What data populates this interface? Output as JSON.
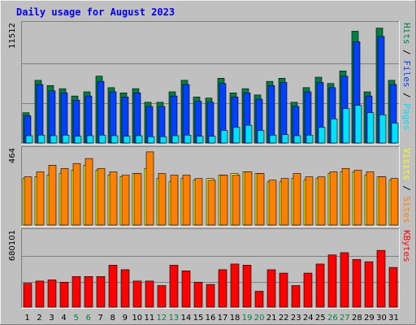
{
  "chart_data": {
    "type": "bar",
    "title": "Daily usage for August 2023",
    "colors": {
      "background": "#c0c0c0",
      "frame_light": "#f0f0f0",
      "frame_dark": "#808080",
      "gridline": "#808080",
      "title": "#0000ff",
      "ylabel": "#000000",
      "weekend_tick": "#008040",
      "weekday_tick": "#000000",
      "hits": "#008040",
      "files": "#0040ff",
      "pages": "#00e0ff",
      "visits": "#ffff00",
      "sites": "#ff8000",
      "kbytes": "#ff0000"
    },
    "x": [
      "1",
      "2",
      "3",
      "4",
      "5",
      "6",
      "7",
      "8",
      "9",
      "10",
      "11",
      "12",
      "13",
      "14",
      "15",
      "16",
      "17",
      "18",
      "19",
      "20",
      "21",
      "22",
      "23",
      "24",
      "25",
      "26",
      "27",
      "28",
      "29",
      "30",
      "31"
    ],
    "weekend_days": [
      "5",
      "6",
      "12",
      "13",
      "19",
      "20",
      "26",
      "27"
    ],
    "panels": [
      {
        "id": "top",
        "ymax_label": "11512",
        "ymax": 11512,
        "grid": true,
        "series": [
          {
            "name": "Hits",
            "color": "#008040",
            "values": [
              2900,
              6000,
              5500,
              5200,
              4500,
              4900,
              6400,
              5300,
              4800,
              5200,
              3900,
              3900,
              4900,
              6000,
              4400,
              4300,
              6200,
              4800,
              5200,
              4600,
              5900,
              6200,
              3900,
              5300,
              6300,
              5700,
              6900,
              10700,
              4900,
              11000,
              6000
            ]
          },
          {
            "name": "Files",
            "color": "#0040ff",
            "values": [
              2600,
              5600,
              5000,
              4800,
              4100,
              4500,
              5900,
              4900,
              4400,
              4800,
              3500,
              3500,
              4500,
              5600,
              4000,
              3900,
              5700,
              4400,
              4800,
              4200,
              5500,
              5800,
              3500,
              4900,
              5800,
              5300,
              6400,
              9700,
              4500,
              10200,
              5600
            ]
          },
          {
            "name": "Pages",
            "color": "#00e0ff",
            "values": [
              700,
              750,
              700,
              750,
              650,
              700,
              750,
              700,
              650,
              700,
              600,
              600,
              700,
              750,
              650,
              650,
              1200,
              1500,
              1700,
              1200,
              750,
              800,
              700,
              750,
              1500,
              2300,
              3300,
              3600,
              2900,
              2700,
              1900
            ]
          }
        ],
        "right_label": [
          {
            "text": "Hits",
            "color": "#008040"
          },
          {
            "text": " / ",
            "color": "#000000"
          },
          {
            "text": "Files",
            "color": "#0040ff"
          },
          {
            "text": " / ",
            "color": "#000000"
          },
          {
            "text": "Pages",
            "color": "#00e0ff"
          }
        ]
      },
      {
        "id": "middle",
        "ymax_label": "464",
        "ymax": 464,
        "grid": false,
        "series": [
          {
            "name": "Visits",
            "color": "#ffff00",
            "values": [
              280,
              290,
              300,
              310,
              330,
              360,
              330,
              300,
              290,
              310,
              340,
              280,
              260,
              280,
              270,
              280,
              300,
              310,
              320,
              310,
              260,
              260,
              280,
              270,
              280,
              310,
              320,
              320,
              300,
              290,
              270
            ]
          },
          {
            "name": "Sites",
            "color": "#ff8000",
            "values": [
              290,
              320,
              360,
              340,
              370,
              400,
              340,
              320,
              300,
              310,
              440,
              310,
              300,
              300,
              280,
              270,
              300,
              300,
              320,
              310,
              270,
              280,
              310,
              290,
              290,
              320,
              340,
              330,
              320,
              290,
              280
            ]
          }
        ],
        "right_label": [
          {
            "text": "Visits",
            "color": "#ffff00"
          },
          {
            "text": " / ",
            "color": "#000000"
          },
          {
            "text": "Sites",
            "color": "#ff8000"
          }
        ]
      },
      {
        "id": "bottom",
        "ymax_label": "680101",
        "ymax": 680101,
        "grid": true,
        "series": [
          {
            "name": "KBytes",
            "color": "#ff0000",
            "values": [
              210000,
              230000,
              240000,
              220000,
              270000,
              270000,
              270000,
              370000,
              330000,
              230000,
              230000,
              190000,
              370000,
              320000,
              220000,
              200000,
              330000,
              380000,
              370000,
              140000,
              330000,
              300000,
              190000,
              300000,
              380000,
              460000,
              480000,
              420000,
              400000,
              500000,
              350000
            ]
          }
        ],
        "right_label": [
          {
            "text": "KBytes",
            "color": "#ff0000"
          }
        ]
      }
    ]
  }
}
